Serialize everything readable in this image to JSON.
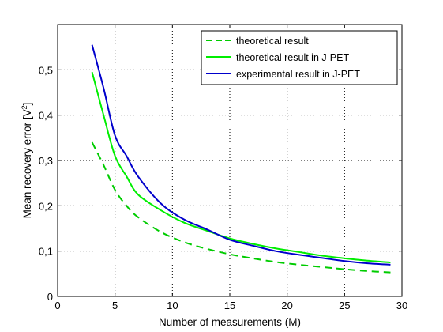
{
  "chart_data": {
    "type": "line",
    "title": "",
    "xlabel": "Number of measurements (M)",
    "ylabel_main": "Mean recovery error [V",
    "ylabel_sup": "2",
    "ylabel_end": "]",
    "xlim": [
      0,
      30
    ],
    "ylim": [
      0,
      0.6
    ],
    "xticks": [
      0,
      5,
      10,
      15,
      20,
      25,
      30
    ],
    "xtick_labels": [
      "0",
      "5",
      "10",
      "15",
      "20",
      "25",
      "30"
    ],
    "yticks": [
      0,
      0.1,
      0.2,
      0.3,
      0.4,
      0.5
    ],
    "ytick_labels": [
      "0",
      "0,1",
      "0,2",
      "0,3",
      "0,4",
      "0,5"
    ],
    "grid": true,
    "legend_position": "top-right",
    "series": [
      {
        "name": "theoretical result",
        "color": "#00cc00",
        "dash": true,
        "x": [
          3,
          4,
          5,
          6,
          7,
          9,
          11,
          13,
          15,
          17,
          19,
          21,
          23,
          25,
          27,
          29
        ],
        "y": [
          0.34,
          0.29,
          0.235,
          0.2,
          0.175,
          0.142,
          0.12,
          0.105,
          0.093,
          0.084,
          0.076,
          0.07,
          0.065,
          0.06,
          0.056,
          0.053
        ]
      },
      {
        "name": "theoretical result in J-PET",
        "color": "#00ee00",
        "dash": false,
        "x": [
          3,
          4,
          5,
          6,
          7,
          9,
          11,
          13,
          15,
          17,
          19,
          21,
          23,
          25,
          27,
          29
        ],
        "y": [
          0.495,
          0.4,
          0.31,
          0.265,
          0.225,
          0.19,
          0.163,
          0.145,
          0.128,
          0.116,
          0.106,
          0.098,
          0.09,
          0.084,
          0.079,
          0.075
        ]
      },
      {
        "name": "experimental result in J-PET",
        "color": "#0000cc",
        "dash": false,
        "x": [
          3,
          4,
          5,
          6,
          7,
          9,
          11,
          13,
          15,
          17,
          19,
          21,
          23,
          25,
          27,
          29
        ],
        "y": [
          0.555,
          0.46,
          0.355,
          0.31,
          0.265,
          0.205,
          0.17,
          0.148,
          0.125,
          0.112,
          0.1,
          0.092,
          0.085,
          0.078,
          0.073,
          0.07
        ]
      }
    ]
  }
}
